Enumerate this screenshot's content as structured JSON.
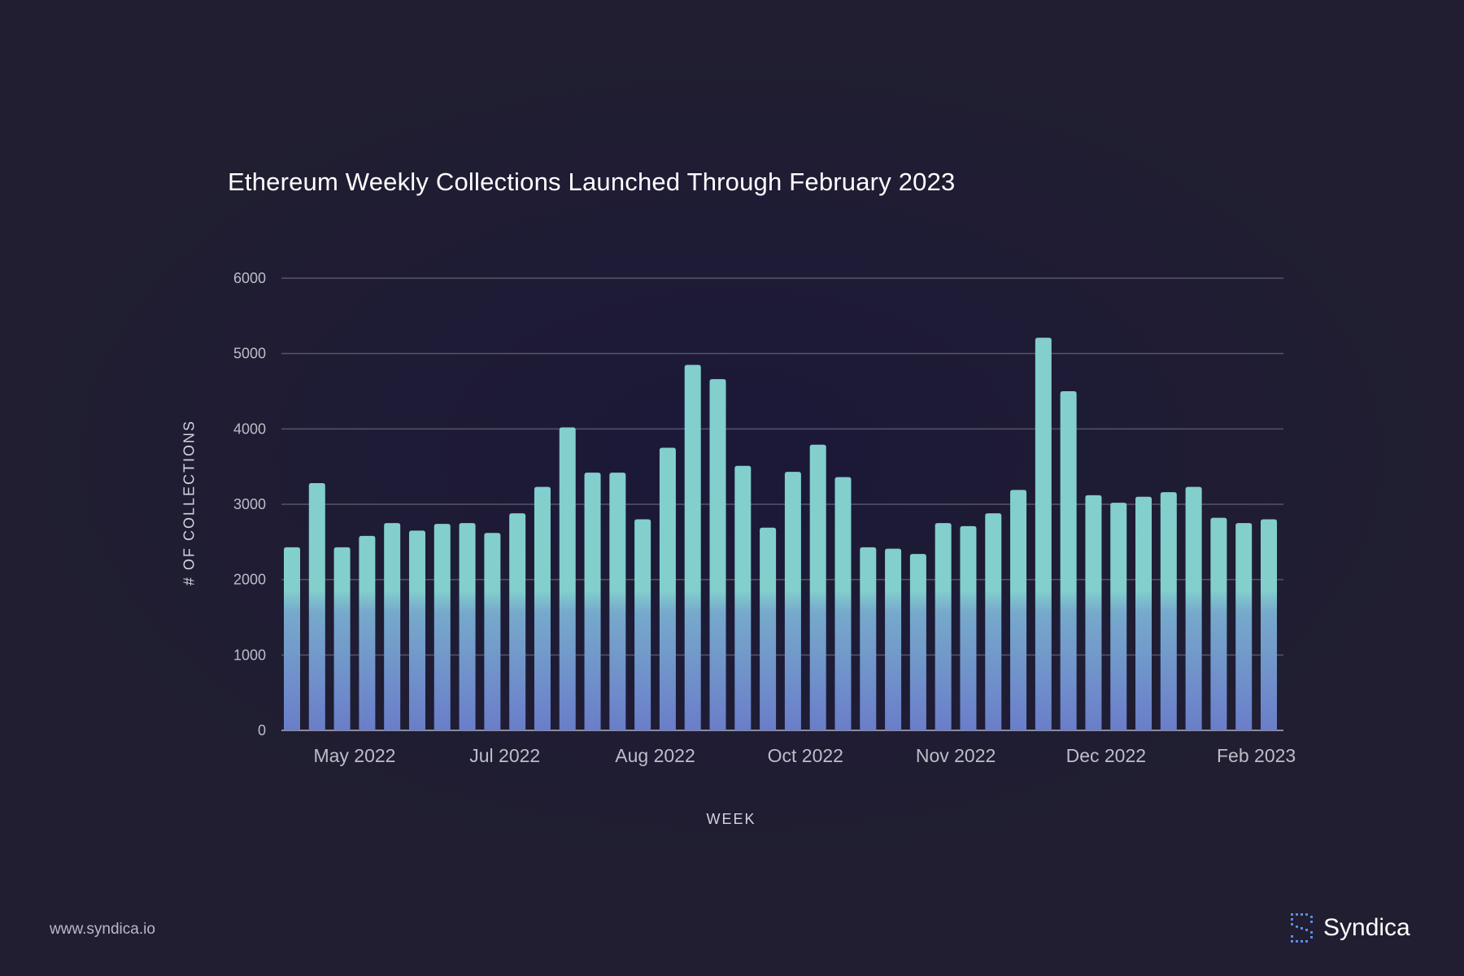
{
  "chart_data": {
    "type": "bar",
    "title": "Ethereum Weekly Collections Launched Through February 2023",
    "xlabel": "WEEK",
    "ylabel": "# OF COLLECTIONS",
    "ylim": [
      0,
      6000
    ],
    "yticks": [
      0,
      1000,
      2000,
      3000,
      4000,
      5000,
      6000
    ],
    "xtick_labels": [
      "May 2022",
      "Jul 2022",
      "Aug 2022",
      "Oct 2022",
      "Nov 2022",
      "Dec 2022",
      "Feb 2023"
    ],
    "xtick_bar_index": [
      2.5,
      8.5,
      14.5,
      20.5,
      26.5,
      32.5,
      38.5
    ],
    "values": [
      2430,
      3280,
      2430,
      2580,
      2750,
      2650,
      2740,
      2750,
      2620,
      2880,
      3230,
      4020,
      3420,
      3420,
      2800,
      3750,
      4850,
      4660,
      3510,
      2690,
      3430,
      3790,
      3360,
      2430,
      2410,
      2340,
      2750,
      2710,
      2880,
      3190,
      5210,
      4500,
      3120,
      3020,
      3100,
      3160,
      3230,
      2820,
      2750,
      2800
    ],
    "grid": true,
    "legend": "none",
    "colors": {
      "bar_top": "#82cfcd",
      "bar_bottom": "#6a7dc9",
      "grid": "#555468",
      "axis": "#8c8b9c",
      "tick_text": "#bdbdc9"
    }
  },
  "footer": {
    "url": "www.syndica.io"
  },
  "brand": {
    "name": "Syndica",
    "icon": "syndica-logo-icon"
  }
}
